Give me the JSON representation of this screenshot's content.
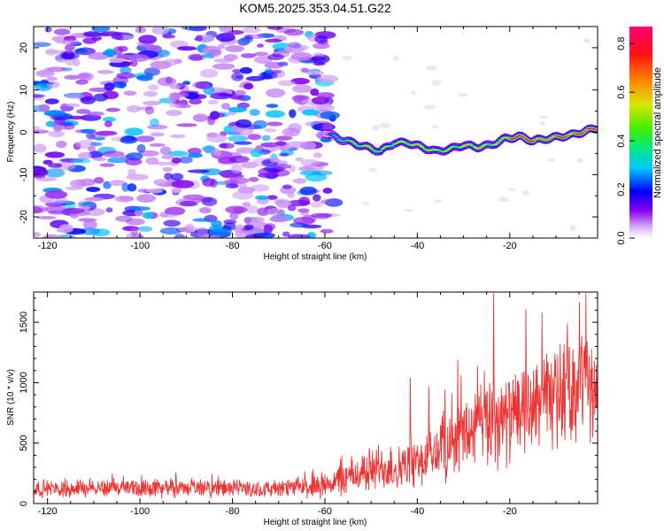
{
  "title": "KOM5.2025.353.04.51.G22",
  "chart_data": [
    {
      "type": "heatmap",
      "name": "frequency-spectrogram",
      "xlabel": "Height of straight line (km)",
      "ylabel": "Frequency (Hz)",
      "xlim": [
        -123,
        -1
      ],
      "ylim": [
        -25,
        25
      ],
      "xticks": [
        -120,
        -100,
        -80,
        -60,
        -40,
        -20
      ],
      "yticks": [
        -20,
        -10,
        0,
        10,
        20
      ],
      "colorbar": {
        "label": "Normalized spectral amplitude",
        "range": [
          0,
          0.87
        ],
        "ticks": [
          "0.0",
          "0.2",
          "0.4",
          "0.6",
          "0.8"
        ]
      },
      "noise_region": {
        "x_range": [
          -123,
          -58
        ],
        "y_range": [
          -25,
          25
        ],
        "typical_amplitude": [
          0.05,
          0.3
        ]
      },
      "signal_ridge": {
        "description": "Doppler signal trace emerging from noise",
        "x": [
          -60,
          -57,
          -54,
          -51,
          -48,
          -45,
          -42,
          -39,
          -36,
          -33,
          -30,
          -27,
          -24,
          -21,
          -18,
          -15,
          -12,
          -9,
          -6,
          -3,
          -1
        ],
        "frequency": [
          0,
          -1.5,
          -2.5,
          -3.5,
          -4.5,
          -2.5,
          -2.5,
          -3.5,
          -4.5,
          -4,
          -3,
          -3.5,
          -3,
          -1.5,
          -1,
          -2,
          -1.5,
          -1,
          -0.5,
          0.5,
          1
        ],
        "amplitude": [
          0.15,
          0.35,
          0.45,
          0.5,
          0.45,
          0.45,
          0.5,
          0.55,
          0.5,
          0.45,
          0.5,
          0.55,
          0.45,
          0.55,
          0.85,
          0.7,
          0.55,
          0.75,
          0.6,
          0.8,
          0.65
        ]
      }
    },
    {
      "type": "line",
      "name": "snr-trace",
      "xlabel": "Height of straight line (km)",
      "ylabel": "SNR (10 * v/v)",
      "xlim": [
        -123,
        -1
      ],
      "ylim": [
        0,
        1750
      ],
      "xticks": [
        -120,
        -100,
        -80,
        -60,
        -40,
        -20
      ],
      "yticks": [
        0,
        500,
        1000,
        1500
      ],
      "color": "#ee3333",
      "envelope": {
        "x": [
          -123,
          -110,
          -100,
          -90,
          -80,
          -70,
          -62,
          -56,
          -52,
          -48,
          -44,
          -40,
          -36,
          -32,
          -28,
          -24,
          -20,
          -16,
          -12,
          -8,
          -4,
          -1
        ],
        "mean": [
          120,
          130,
          130,
          130,
          125,
          120,
          140,
          200,
          260,
          300,
          290,
          320,
          420,
          520,
          600,
          700,
          700,
          780,
          850,
          900,
          1000,
          900
        ],
        "amp": [
          60,
          65,
          65,
          65,
          60,
          60,
          80,
          120,
          150,
          170,
          160,
          180,
          220,
          260,
          300,
          350,
          300,
          300,
          330,
          340,
          380,
          300
        ]
      },
      "peaks": [
        {
          "x": -23.5,
          "y": 1740
        },
        {
          "x": -3.5,
          "y": 1740
        },
        {
          "x": -13,
          "y": 1580
        },
        {
          "x": -16.5,
          "y": 1610
        },
        {
          "x": -7.5,
          "y": 1490
        },
        {
          "x": -41.5,
          "y": 1040
        },
        {
          "x": -37.5,
          "y": 970
        },
        {
          "x": -30.5,
          "y": 1060
        },
        {
          "x": -27,
          "y": 1140
        },
        {
          "x": -34,
          "y": 940
        }
      ]
    }
  ]
}
